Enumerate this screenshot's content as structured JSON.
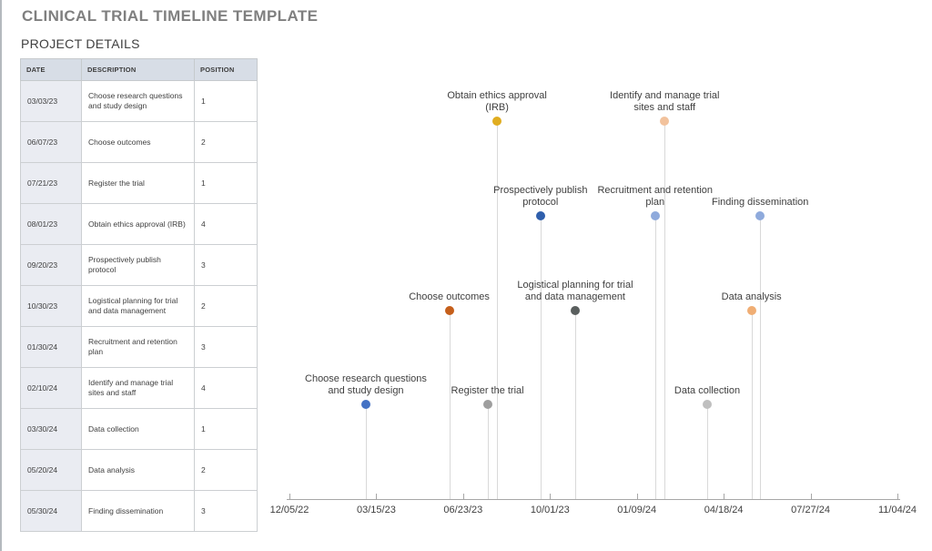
{
  "page": {
    "title": "CLINICAL TRIAL TIMELINE TEMPLATE",
    "section_title": "PROJECT DETAILS"
  },
  "table": {
    "headers": [
      "DATE",
      "DESCRIPTION",
      "POSITION"
    ],
    "rows": [
      {
        "date": "03/03/23",
        "description": "Choose research questions and study design",
        "position": "1"
      },
      {
        "date": "06/07/23",
        "description": "Choose outcomes",
        "position": "2"
      },
      {
        "date": "07/21/23",
        "description": "Register the trial",
        "position": "1"
      },
      {
        "date": "08/01/23",
        "description": "Obtain ethics approval (IRB)",
        "position": "4"
      },
      {
        "date": "09/20/23",
        "description": "Prospectively publish protocol",
        "position": "3"
      },
      {
        "date": "10/30/23",
        "description": "Logistical planning for trial and data management",
        "position": "2"
      },
      {
        "date": "01/30/24",
        "description": "Recruitment and retention plan",
        "position": "3"
      },
      {
        "date": "02/10/24",
        "description": "Identify and manage trial sites and staff",
        "position": "4"
      },
      {
        "date": "03/30/24",
        "description": "Data collection",
        "position": "1"
      },
      {
        "date": "05/20/24",
        "description": "Data analysis",
        "position": "2"
      },
      {
        "date": "05/30/24",
        "description": "Finding dissemination",
        "position": "3"
      }
    ]
  },
  "chart_data": {
    "type": "scatter",
    "title": "",
    "xlabel": "",
    "ylabel": "",
    "legend": "none",
    "grid": "off",
    "axis": {
      "start": "12/05/22",
      "end": "11/04/24"
    },
    "x_tick_labels": [
      "12/05/22",
      "03/15/23",
      "06/23/23",
      "10/01/23",
      "01/09/24",
      "04/18/24",
      "07/27/24",
      "11/04/24"
    ],
    "position_scale": {
      "min": 0,
      "max": 5
    },
    "milestones": [
      {
        "date": "03/03/23",
        "label": "Choose research questions\nand study design",
        "position": 1,
        "color": "#4472c4"
      },
      {
        "date": "06/07/23",
        "label": "Choose outcomes",
        "position": 2,
        "color": "#c55f1b"
      },
      {
        "date": "07/21/23",
        "label": "Register the trial",
        "position": 1,
        "color": "#9e9e9e"
      },
      {
        "date": "08/01/23",
        "label": "Obtain ethics approval\n(IRB)",
        "position": 4,
        "color": "#e0ad20"
      },
      {
        "date": "09/20/23",
        "label": "Prospectively publish\nprotocol",
        "position": 3,
        "color": "#2f5fac"
      },
      {
        "date": "10/30/23",
        "label": "Logistical planning for trial\nand data management",
        "position": 2,
        "color": "#5a5f5e"
      },
      {
        "date": "01/30/24",
        "label": "Recruitment and retention\nplan",
        "position": 3,
        "color": "#8faadc"
      },
      {
        "date": "02/10/24",
        "label": "Identify and manage trial\nsites and staff",
        "position": 4,
        "color": "#f2c29c"
      },
      {
        "date": "03/30/24",
        "label": "Data collection",
        "position": 1,
        "color": "#bfbfbf"
      },
      {
        "date": "05/20/24",
        "label": "Data analysis",
        "position": 2,
        "color": "#f0ae74"
      },
      {
        "date": "05/30/24",
        "label": "Finding dissemination",
        "position": 3,
        "color": "#8faadc"
      }
    ]
  }
}
